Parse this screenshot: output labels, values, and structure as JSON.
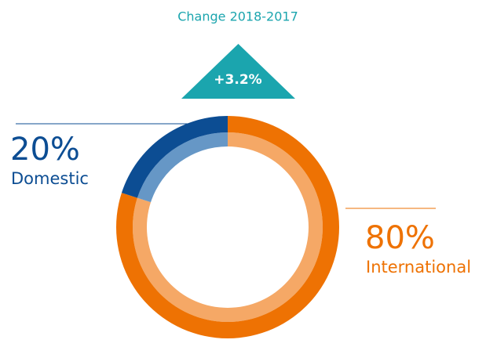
{
  "chart_data": {
    "type": "donut",
    "subtitle": "Change 2018-2017",
    "annotation": "+3.2%",
    "annotation_color": "#1ba5ae",
    "categories": [
      "Domestic",
      "International"
    ],
    "values": [
      20,
      80
    ],
    "value_labels": [
      "20%",
      "80%"
    ],
    "colors": [
      "#0c4d93",
      "#ee7203"
    ],
    "inner_colors": [
      "#6697c6",
      "#f5a866"
    ]
  }
}
